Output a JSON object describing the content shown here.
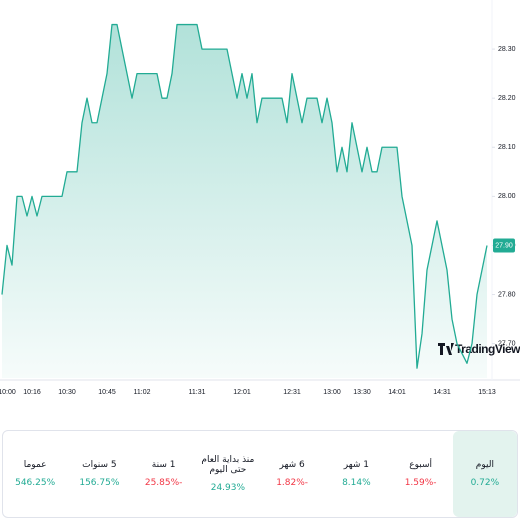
{
  "chart_data": {
    "type": "area",
    "categories": [
      null,
      "10:00",
      null,
      null,
      null,
      null,
      "10:16",
      null,
      null,
      null,
      null,
      null,
      null,
      "10:30",
      null,
      null,
      null,
      null,
      null,
      null,
      null,
      "10:45",
      null,
      null,
      null,
      null,
      null,
      null,
      "11:02",
      null,
      null,
      null,
      null,
      null,
      null,
      null,
      null,
      null,
      null,
      "11:31",
      null,
      null,
      null,
      null,
      null,
      null,
      null,
      null,
      "12:01",
      null,
      null,
      null,
      null,
      null,
      null,
      null,
      null,
      null,
      "12:31",
      null,
      null,
      null,
      null,
      null,
      null,
      null,
      "13:00",
      null,
      null,
      null,
      null,
      null,
      "13:30",
      null,
      null,
      null,
      null,
      null,
      null,
      "14:01",
      null,
      null,
      null,
      null,
      null,
      null,
      null,
      null,
      "14:31",
      null,
      null,
      null,
      null,
      null,
      null,
      null,
      null,
      "15:13"
    ],
    "values": [
      27.8,
      27.9,
      27.86,
      28.0,
      28.0,
      27.96,
      28.0,
      27.96,
      28.0,
      28.0,
      28.0,
      28.0,
      28.0,
      28.05,
      28.05,
      28.05,
      28.15,
      28.2,
      28.15,
      28.15,
      28.2,
      28.25,
      28.35,
      28.35,
      28.3,
      28.25,
      28.2,
      28.25,
      28.25,
      28.25,
      28.25,
      28.25,
      28.2,
      28.2,
      28.25,
      28.35,
      28.35,
      28.35,
      28.35,
      28.35,
      28.3,
      28.3,
      28.3,
      28.3,
      28.3,
      28.3,
      28.25,
      28.2,
      28.25,
      28.2,
      28.25,
      28.15,
      28.2,
      28.2,
      28.2,
      28.2,
      28.2,
      28.15,
      28.25,
      28.2,
      28.15,
      28.2,
      28.2,
      28.2,
      28.15,
      28.2,
      28.15,
      28.05,
      28.1,
      28.05,
      28.15,
      28.1,
      28.05,
      28.1,
      28.05,
      28.05,
      28.1,
      28.1,
      28.1,
      28.1,
      28.0,
      27.95,
      27.9,
      27.65,
      27.72,
      27.85,
      27.9,
      27.95,
      27.9,
      27.85,
      27.75,
      27.7,
      27.68,
      27.66,
      27.7,
      27.8,
      27.85,
      27.9
    ],
    "color": "#22ab94",
    "ylim": [
      27.63,
      28.4
    ],
    "yticks": [
      {
        "value": 27.7,
        "label": "27.70"
      },
      {
        "value": 27.8,
        "label": "27.80"
      },
      {
        "value": 27.9,
        "label": "27.90"
      },
      {
        "value": 28.0,
        "label": "28.00"
      },
      {
        "value": 28.1,
        "label": "28.10"
      },
      {
        "value": 28.2,
        "label": "28.20"
      },
      {
        "value": 28.3,
        "label": "28.30"
      }
    ],
    "grid": false,
    "last_price": {
      "value": 27.9,
      "label": "27.90"
    },
    "watermark": "TradingView"
  },
  "performance": [
    {
      "period": "اليوم",
      "value": "0.72%",
      "trend": "up"
    },
    {
      "period": "أسبوع",
      "value": "-1.59%",
      "trend": "down"
    },
    {
      "period": "1 شهر",
      "value": "8.14%",
      "trend": "up"
    },
    {
      "period": "6 شهر",
      "value": "-1.82%",
      "trend": "down"
    },
    {
      "period": "منذ بداية العام حتى اليوم",
      "value": "24.93%",
      "trend": "up"
    },
    {
      "period": "1 سنة",
      "value": "-25.85%",
      "trend": "down"
    },
    {
      "period": "5 سنوات",
      "value": "156.75%",
      "trend": "up"
    },
    {
      "period": "عموما",
      "value": "546.25%",
      "trend": "up"
    }
  ]
}
